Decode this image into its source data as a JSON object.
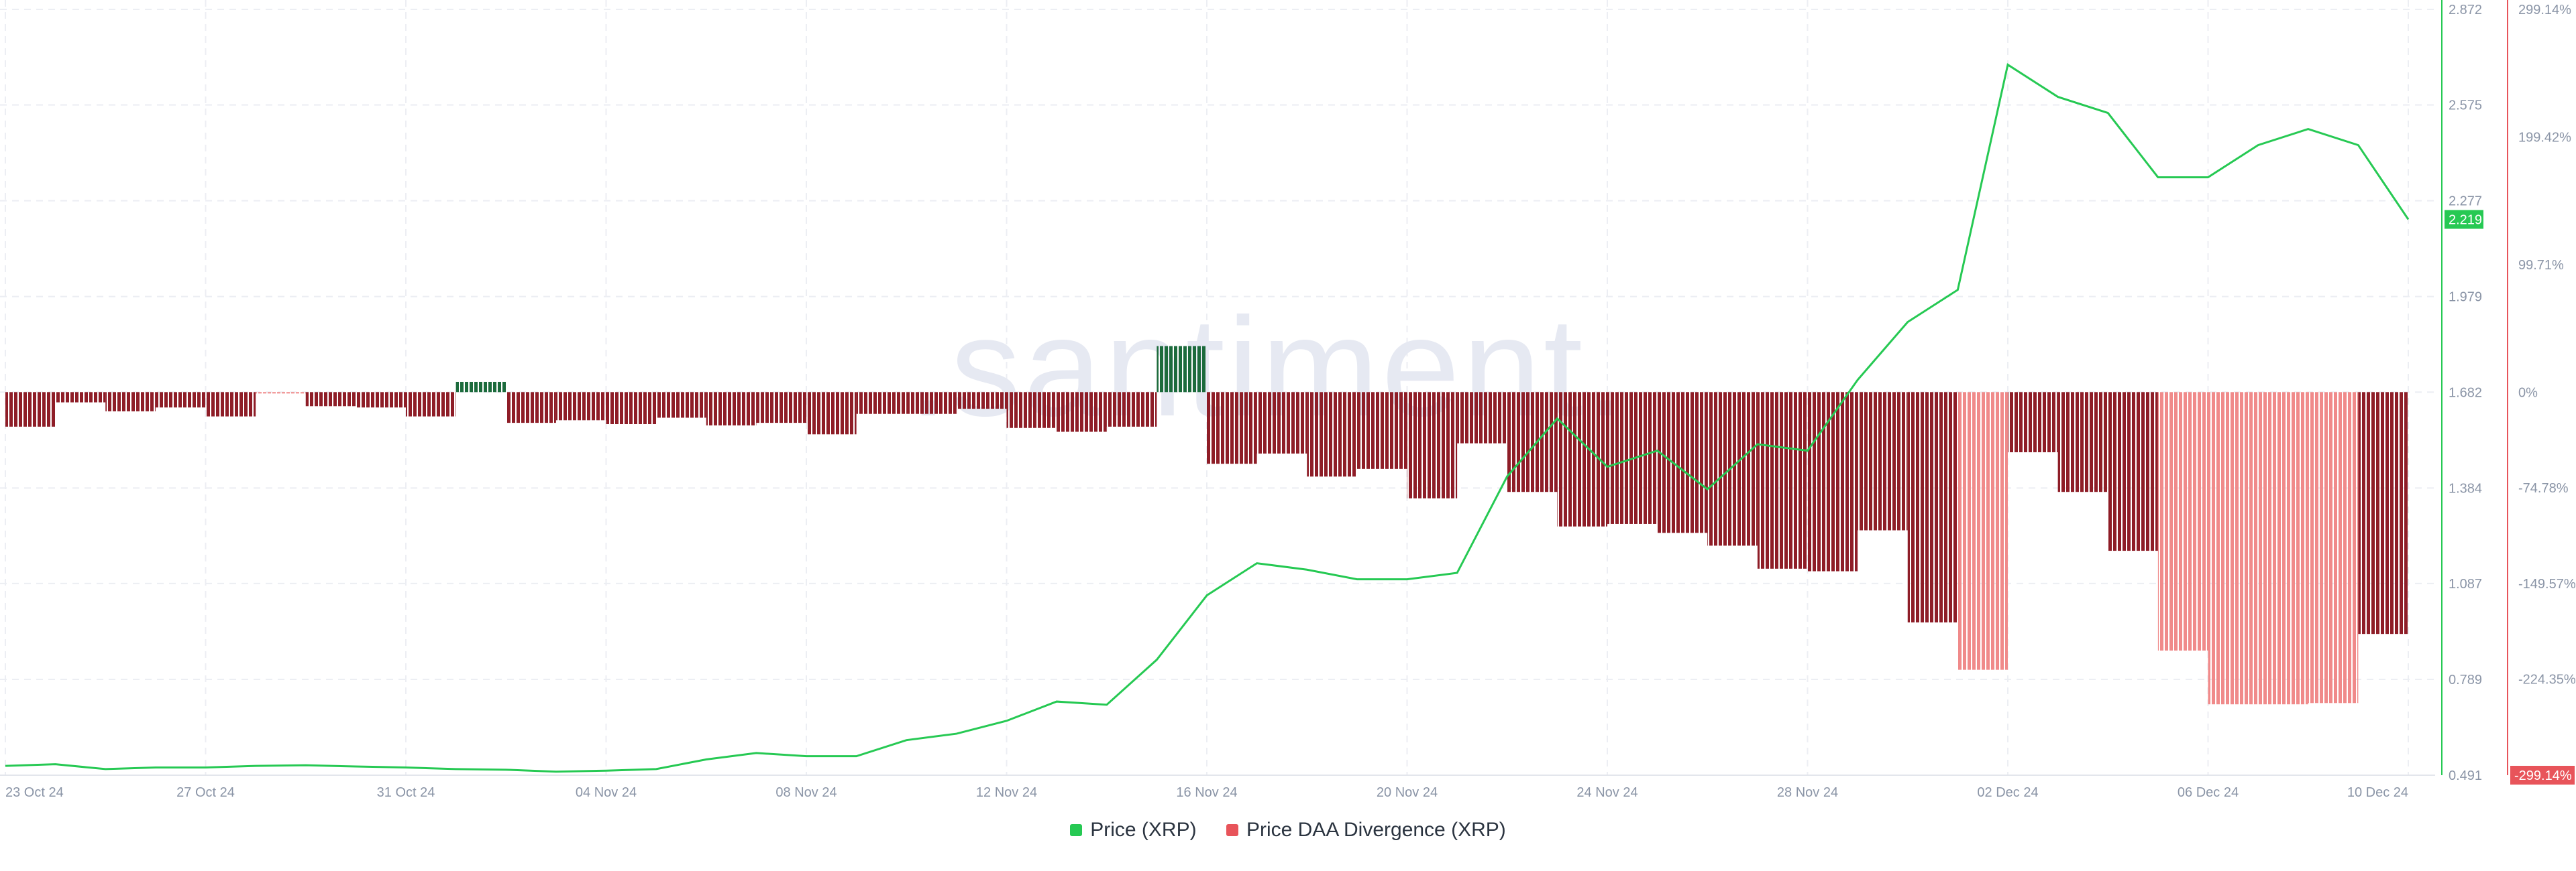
{
  "watermark": ".santiment.",
  "colors": {
    "price": "#26c953",
    "negative_dark": "#8e1d27",
    "negative_light": "#f08a8a",
    "positive_dark": "#1c6b3c",
    "right_axis": "#e8545a",
    "badge_price": "#26c953",
    "badge_div": "#e8545a"
  },
  "legend": [
    {
      "label": "Price (XRP)",
      "color": "#26c953"
    },
    {
      "label": "Price DAA Divergence (XRP)",
      "color": "#e8545a"
    }
  ],
  "chart_data": {
    "type": "line+bar",
    "x_range": [
      "2024-10-23",
      "2024-12-10"
    ],
    "x_ticks": [
      "23 Oct 24",
      "27 Oct 24",
      "31 Oct 24",
      "04 Nov 24",
      "08 Nov 24",
      "12 Nov 24",
      "16 Nov 24",
      "20 Nov 24",
      "24 Nov 24",
      "28 Nov 24",
      "02 Dec 24",
      "06 Dec 24",
      "10 Dec 24"
    ],
    "price_axis": {
      "ticks": [
        "2.872",
        "2.575",
        "2.277",
        "1.979",
        "1.682",
        "1.384",
        "1.087",
        "0.789",
        "0.491"
      ],
      "ylim": [
        0.491,
        2.872
      ],
      "current": "2.219"
    },
    "divergence_axis": {
      "ticks": [
        "299.14%",
        "199.42%",
        "99.71%",
        "0%",
        "-74.78%",
        "-149.57%",
        "-224.35%"
      ],
      "ylim": [
        -299.14,
        299.14
      ],
      "bottom_badge": "-299.14%"
    },
    "series": [
      {
        "name": "Price (XRP)",
        "kind": "line",
        "points": [
          [
            "2024-10-23",
            0.52
          ],
          [
            "2024-10-24",
            0.525
          ],
          [
            "2024-10-25",
            0.51
          ],
          [
            "2024-10-26",
            0.515
          ],
          [
            "2024-10-27",
            0.515
          ],
          [
            "2024-10-28",
            0.52
          ],
          [
            "2024-10-29",
            0.522
          ],
          [
            "2024-10-30",
            0.518
          ],
          [
            "2024-10-31",
            0.515
          ],
          [
            "2024-11-01",
            0.51
          ],
          [
            "2024-11-02",
            0.508
          ],
          [
            "2024-11-03",
            0.502
          ],
          [
            "2024-11-04",
            0.505
          ],
          [
            "2024-11-05",
            0.51
          ],
          [
            "2024-11-06",
            0.54
          ],
          [
            "2024-11-07",
            0.56
          ],
          [
            "2024-11-08",
            0.55
          ],
          [
            "2024-11-09",
            0.55
          ],
          [
            "2024-11-10",
            0.6
          ],
          [
            "2024-11-11",
            0.62
          ],
          [
            "2024-11-12",
            0.66
          ],
          [
            "2024-11-13",
            0.72
          ],
          [
            "2024-11-14",
            0.71
          ],
          [
            "2024-11-15",
            0.85
          ],
          [
            "2024-11-16",
            1.05
          ],
          [
            "2024-11-17",
            1.15
          ],
          [
            "2024-11-18",
            1.13
          ],
          [
            "2024-11-19",
            1.1
          ],
          [
            "2024-11-20",
            1.1
          ],
          [
            "2024-11-21",
            1.12
          ],
          [
            "2024-11-22",
            1.42
          ],
          [
            "2024-11-23",
            1.6
          ],
          [
            "2024-11-24",
            1.45
          ],
          [
            "2024-11-25",
            1.5
          ],
          [
            "2024-11-26",
            1.38
          ],
          [
            "2024-11-27",
            1.52
          ],
          [
            "2024-11-28",
            1.5
          ],
          [
            "2024-11-29",
            1.72
          ],
          [
            "2024-11-30",
            1.9
          ],
          [
            "2024-12-01",
            2.0
          ],
          [
            "2024-12-02",
            2.7
          ],
          [
            "2024-12-03",
            2.6
          ],
          [
            "2024-12-04",
            2.55
          ],
          [
            "2024-12-05",
            2.35
          ],
          [
            "2024-12-06",
            2.35
          ],
          [
            "2024-12-07",
            2.45
          ],
          [
            "2024-12-08",
            2.5
          ],
          [
            "2024-12-09",
            2.45
          ],
          [
            "2024-12-10",
            2.219
          ]
        ]
      },
      {
        "name": "Price DAA Divergence (XRP)",
        "kind": "bar",
        "bars": [
          {
            "start": "2024-10-23",
            "end": "2024-10-24",
            "value": -27,
            "shade": "dark"
          },
          {
            "start": "2024-10-24",
            "end": "2024-10-25",
            "value": -8,
            "shade": "dark"
          },
          {
            "start": "2024-10-25",
            "end": "2024-10-26",
            "value": -15,
            "shade": "dark"
          },
          {
            "start": "2024-10-26",
            "end": "2024-10-27",
            "value": -12,
            "shade": "dark"
          },
          {
            "start": "2024-10-27",
            "end": "2024-10-28",
            "value": -19,
            "shade": "dark"
          },
          {
            "start": "2024-10-28",
            "end": "2024-10-29",
            "value": -1,
            "shade": "light"
          },
          {
            "start": "2024-10-29",
            "end": "2024-10-30",
            "value": -11,
            "shade": "dark"
          },
          {
            "start": "2024-10-30",
            "end": "2024-10-31",
            "value": -12,
            "shade": "dark"
          },
          {
            "start": "2024-10-31",
            "end": "2024-11-01",
            "value": -19,
            "shade": "dark"
          },
          {
            "start": "2024-11-01",
            "end": "2024-11-02",
            "value": 8,
            "shade": "positive"
          },
          {
            "start": "2024-11-02",
            "end": "2024-11-03",
            "value": -24,
            "shade": "dark"
          },
          {
            "start": "2024-11-03",
            "end": "2024-11-04",
            "value": -22,
            "shade": "dark"
          },
          {
            "start": "2024-11-04",
            "end": "2024-11-05",
            "value": -25,
            "shade": "dark"
          },
          {
            "start": "2024-11-05",
            "end": "2024-11-06",
            "value": -20,
            "shade": "dark"
          },
          {
            "start": "2024-11-06",
            "end": "2024-11-07",
            "value": -26,
            "shade": "dark"
          },
          {
            "start": "2024-11-07",
            "end": "2024-11-08",
            "value": -24,
            "shade": "dark"
          },
          {
            "start": "2024-11-08",
            "end": "2024-11-09",
            "value": -33,
            "shade": "dark"
          },
          {
            "start": "2024-11-09",
            "end": "2024-11-10",
            "value": -17,
            "shade": "dark"
          },
          {
            "start": "2024-11-10",
            "end": "2024-11-11",
            "value": -17,
            "shade": "dark"
          },
          {
            "start": "2024-11-11",
            "end": "2024-11-12",
            "value": -13,
            "shade": "dark"
          },
          {
            "start": "2024-11-12",
            "end": "2024-11-13",
            "value": -28,
            "shade": "dark"
          },
          {
            "start": "2024-11-13",
            "end": "2024-11-14",
            "value": -31,
            "shade": "dark"
          },
          {
            "start": "2024-11-14",
            "end": "2024-11-15",
            "value": -27,
            "shade": "dark"
          },
          {
            "start": "2024-11-15",
            "end": "2024-11-16",
            "value": 36,
            "shade": "positive"
          },
          {
            "start": "2024-11-16",
            "end": "2024-11-17",
            "value": -56,
            "shade": "dark"
          },
          {
            "start": "2024-11-17",
            "end": "2024-11-18",
            "value": -48,
            "shade": "dark"
          },
          {
            "start": "2024-11-18",
            "end": "2024-11-19",
            "value": -66,
            "shade": "dark"
          },
          {
            "start": "2024-11-19",
            "end": "2024-11-20",
            "value": -60,
            "shade": "dark"
          },
          {
            "start": "2024-11-20",
            "end": "2024-11-21",
            "value": -83,
            "shade": "dark"
          },
          {
            "start": "2024-11-21",
            "end": "2024-11-22",
            "value": -40,
            "shade": "dark"
          },
          {
            "start": "2024-11-22",
            "end": "2024-11-23",
            "value": -78,
            "shade": "dark"
          },
          {
            "start": "2024-11-23",
            "end": "2024-11-24",
            "value": -105,
            "shade": "dark"
          },
          {
            "start": "2024-11-24",
            "end": "2024-11-25",
            "value": -103,
            "shade": "dark"
          },
          {
            "start": "2024-11-25",
            "end": "2024-11-26",
            "value": -110,
            "shade": "dark"
          },
          {
            "start": "2024-11-26",
            "end": "2024-11-27",
            "value": -120,
            "shade": "dark"
          },
          {
            "start": "2024-11-27",
            "end": "2024-11-28",
            "value": -138,
            "shade": "dark"
          },
          {
            "start": "2024-11-28",
            "end": "2024-11-29",
            "value": -140,
            "shade": "dark"
          },
          {
            "start": "2024-11-29",
            "end": "2024-11-30",
            "value": -108,
            "shade": "dark"
          },
          {
            "start": "2024-11-30",
            "end": "2024-12-01",
            "value": -180,
            "shade": "dark"
          },
          {
            "start": "2024-12-01",
            "end": "2024-12-02",
            "value": -217,
            "shade": "light"
          },
          {
            "start": "2024-12-02",
            "end": "2024-12-03",
            "value": -47,
            "shade": "dark"
          },
          {
            "start": "2024-12-03",
            "end": "2024-12-04",
            "value": -78,
            "shade": "dark"
          },
          {
            "start": "2024-12-04",
            "end": "2024-12-05",
            "value": -124,
            "shade": "dark"
          },
          {
            "start": "2024-12-05",
            "end": "2024-12-06",
            "value": -202,
            "shade": "light"
          },
          {
            "start": "2024-12-06",
            "end": "2024-12-07",
            "value": -244,
            "shade": "light"
          },
          {
            "start": "2024-12-07",
            "end": "2024-12-08",
            "value": -244,
            "shade": "light"
          },
          {
            "start": "2024-12-08",
            "end": "2024-12-09",
            "value": -243,
            "shade": "light"
          },
          {
            "start": "2024-12-09",
            "end": "2024-12-10",
            "value": -189,
            "shade": "dark"
          }
        ]
      }
    ],
    "grid": true,
    "legend_position": "bottom-center"
  }
}
